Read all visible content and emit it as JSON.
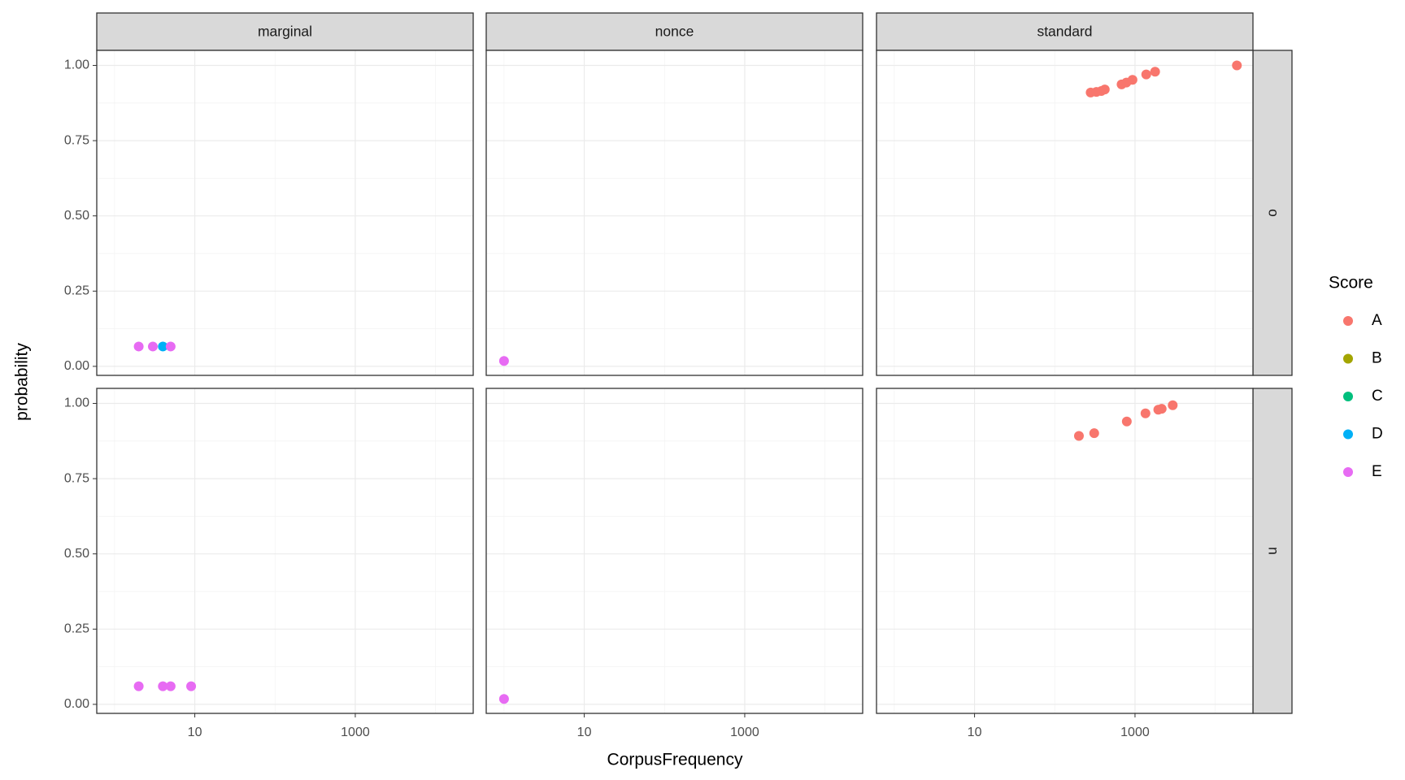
{
  "chart_data": {
    "type": "scatter",
    "x_label": "CorpusFrequency",
    "y_label": "probability",
    "columns": [
      "marginal",
      "nonce",
      "standard"
    ],
    "rows": [
      "o",
      "n"
    ],
    "xscale": "log",
    "xlim": [
      0.6,
      29500
    ],
    "xticks": [
      10,
      1000
    ],
    "xminor": [
      1,
      100,
      10000
    ],
    "ylim": [
      -0.03,
      1.05
    ],
    "yticks": [
      {
        "value": 0,
        "label": "0.00"
      },
      0.25,
      {
        "value": 0.5,
        "label": "0.50"
      },
      0.75,
      {
        "value": 1,
        "label": "1.00"
      }
    ],
    "yminor": [
      0.125,
      0.375,
      0.625,
      0.875
    ],
    "grid": true,
    "legend": {
      "title": "Score",
      "position": "right",
      "entries": [
        {
          "name": "A",
          "color": "#f8766d"
        },
        {
          "name": "B",
          "color": "#a3a500"
        },
        {
          "name": "C",
          "color": "#00bf7d"
        },
        {
          "name": "D",
          "color": "#00b0f6"
        },
        {
          "name": "E",
          "color": "#e76bf3"
        }
      ]
    },
    "panels": [
      [
        {
          "x": [
            2,
            3,
            4,
            5
          ],
          "values": [
            0.066,
            0.066,
            0.066,
            0.066
          ],
          "score": [
            "E",
            "E",
            "D",
            "E"
          ]
        },
        {
          "x": [
            1
          ],
          "values": [
            0.018
          ],
          "score": [
            "E"
          ]
        },
        {
          "x": [
            280,
            330,
            380,
            420,
            680,
            780,
            930,
            1380,
            1780,
            18600
          ],
          "values": [
            0.91,
            0.912,
            0.915,
            0.92,
            0.937,
            0.943,
            0.952,
            0.97,
            0.979,
            1.0
          ],
          "score": [
            "A",
            "A",
            "A",
            "A",
            "A",
            "A",
            "A",
            "A",
            "A",
            "A"
          ]
        }
      ],
      [
        {
          "x": [
            2,
            4,
            5,
            9
          ],
          "values": [
            0.06,
            0.06,
            0.06,
            0.06
          ],
          "score": [
            "E",
            "E",
            "E",
            "E"
          ]
        },
        {
          "x": [
            1
          ],
          "values": [
            0.018
          ],
          "score": [
            "E"
          ]
        },
        {
          "x": [
            200,
            310,
            790,
            1350,
            1950,
            2150,
            2950
          ],
          "values": [
            0.892,
            0.901,
            0.94,
            0.967,
            0.979,
            0.982,
            0.994
          ],
          "score": [
            "A",
            "A",
            "A",
            "A",
            "A",
            "A",
            "A"
          ]
        }
      ]
    ]
  }
}
